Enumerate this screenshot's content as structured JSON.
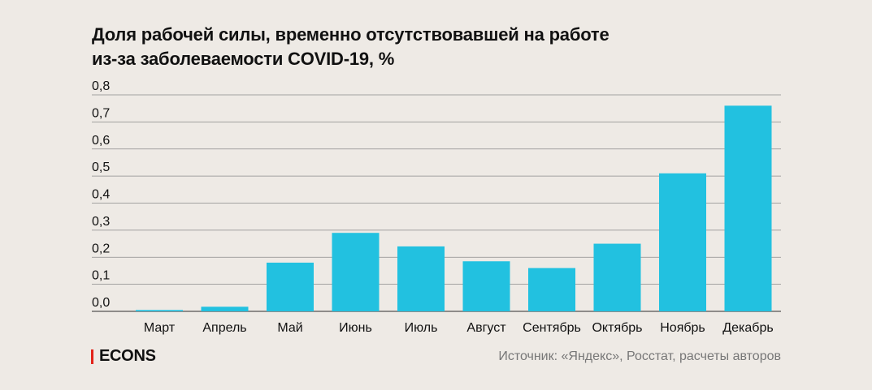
{
  "header": {
    "title_line1": "Доля рабочей силы, временно отсутствовавшей на работе",
    "title_line2": "из-за заболеваемости COVID-19, %"
  },
  "footer": {
    "brand": "ECONS",
    "source": "Источник: «Яндекс», Росстат, расчеты авторов"
  },
  "colors": {
    "bar": "#22c1e0",
    "background": "#eeeae5",
    "brand_accent": "#e2231a"
  },
  "chart_data": {
    "type": "bar",
    "title": "Доля рабочей силы, временно отсутствовавшей на работе из-за заболеваемости COVID-19, %",
    "categories": [
      "Март",
      "Апрель",
      "Май",
      "Июнь",
      "Июль",
      "Август",
      "Сентябрь",
      "Октябрь",
      "Ноябрь",
      "Декабрь"
    ],
    "values": [
      0.005,
      0.017,
      0.18,
      0.29,
      0.24,
      0.185,
      0.16,
      0.25,
      0.51,
      0.76
    ],
    "yticks": [
      "0,0",
      "0,1",
      "0,2",
      "0,3",
      "0,4",
      "0,5",
      "0,6",
      "0,7",
      "0,8"
    ],
    "ylim": [
      0,
      0.8
    ],
    "xlabel": "",
    "ylabel": "",
    "grid": true,
    "legend": "none"
  }
}
